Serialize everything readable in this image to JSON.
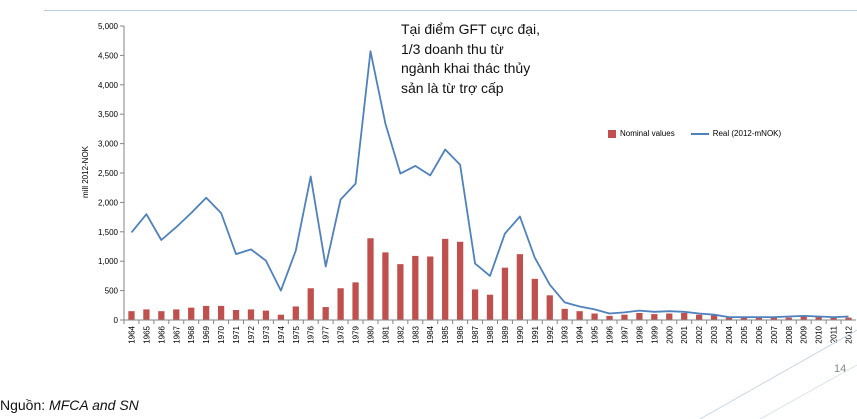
{
  "chart_data": {
    "type": "bar+line",
    "categories": [
      "1964",
      "1965",
      "1966",
      "1967",
      "1968",
      "1969",
      "1970",
      "1971",
      "1972",
      "1973",
      "1974",
      "1975",
      "1976",
      "1977",
      "1978",
      "1979",
      "1980",
      "1981",
      "1982",
      "1983",
      "1984",
      "1985",
      "1986",
      "1987",
      "1988",
      "1989",
      "1990",
      "1991",
      "1992",
      "1993",
      "1994",
      "1995",
      "1996",
      "1997",
      "1998",
      "1999",
      "2000",
      "2001",
      "2002",
      "2003",
      "2004",
      "2005",
      "2006",
      "2007",
      "2008",
      "2009",
      "2010",
      "2011",
      "2012"
    ],
    "series": [
      {
        "name": "Nominal values",
        "kind": "bar",
        "color": "#c0504d",
        "values": [
          150,
          180,
          150,
          180,
          210,
          240,
          240,
          170,
          180,
          160,
          90,
          230,
          540,
          220,
          540,
          640,
          1390,
          1150,
          950,
          1090,
          1080,
          1380,
          1330,
          520,
          430,
          890,
          1120,
          700,
          420,
          190,
          150,
          110,
          70,
          90,
          120,
          100,
          110,
          120,
          90,
          80,
          40,
          40,
          40,
          40,
          40,
          60,
          50,
          40,
          40
        ]
      },
      {
        "name": "Real (2012-mNOK)",
        "kind": "line",
        "color": "#4f81bd",
        "values": [
          1490,
          1800,
          1360,
          1580,
          1820,
          2080,
          1820,
          1120,
          1200,
          1010,
          500,
          1180,
          2440,
          910,
          2050,
          2320,
          4570,
          3340,
          2490,
          2620,
          2460,
          2900,
          2640,
          960,
          750,
          1470,
          1760,
          1060,
          600,
          300,
          230,
          180,
          110,
          130,
          160,
          140,
          150,
          140,
          110,
          90,
          50,
          50,
          50,
          50,
          60,
          70,
          60,
          50,
          60
        ]
      }
    ],
    "ylabel": "mill 2012-NOK",
    "yticks": [
      "5,000",
      "4,500",
      "4,000",
      "3,500",
      "3,000",
      "2,500",
      "2,000",
      "1,500",
      "1,000",
      "500",
      "0"
    ],
    "ylim": [
      0,
      5000
    ],
    "grid": false,
    "legend_position": "top-right"
  },
  "annotation": "Tại điểm GFT cực đại,\n1/3 doanh thu từ\nngành khai thác thủy\nsản là từ trợ cấp",
  "source_prefix": "Nguồn: ",
  "source_name": "MFCA and SN",
  "page_number": "14"
}
